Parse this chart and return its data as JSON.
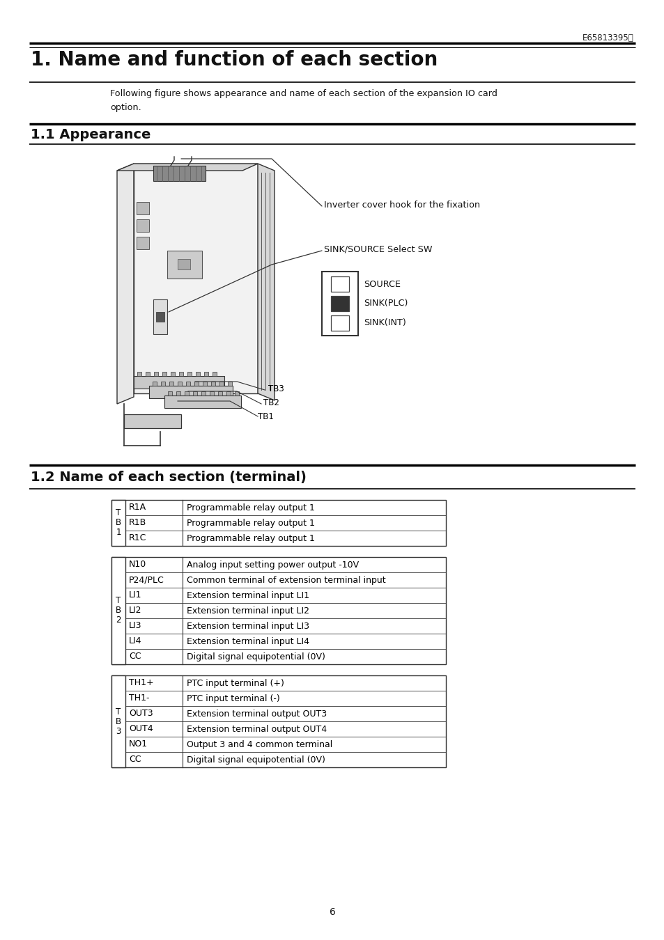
{
  "page_number": "6",
  "doc_id": "E65813395ⓔ",
  "title": "1. Name and function of each section",
  "intro_line1": "Following figure shows appearance and name of each section of the expansion IO card",
  "intro_line2": "option.",
  "section1": "1.1 Appearance",
  "section2": "1.2 Name of each section (terminal)",
  "label1": "Inverter cover hook for the fixation",
  "label2": "SINK/SOURCE Select SW",
  "switch_labels": [
    "SOURCE",
    "SINK(PLC)",
    "SINK(INT)"
  ],
  "tb_labels": [
    "TB3",
    "TB2",
    "TB1"
  ],
  "table1": {
    "group_label": "T\nB\n1",
    "rows": [
      [
        "R1A",
        "Programmable relay output 1"
      ],
      [
        "R1B",
        "Programmable relay output 1"
      ],
      [
        "R1C",
        "Programmable relay output 1"
      ]
    ]
  },
  "table2": {
    "group_label": "T\nB\n2",
    "rows": [
      [
        "N10",
        "Analog input setting power output -10V"
      ],
      [
        "P24/PLC",
        "Common terminal of extension terminal input"
      ],
      [
        "LI1",
        "Extension terminal input LI1"
      ],
      [
        "LI2",
        "Extension terminal input LI2"
      ],
      [
        "LI3",
        "Extension terminal input LI3"
      ],
      [
        "LI4",
        "Extension terminal input LI4"
      ],
      [
        "CC",
        "Digital signal equipotential (0V)"
      ]
    ]
  },
  "table3": {
    "group_label": "T\nB\n3",
    "rows": [
      [
        "TH1+",
        "PTC input terminal (+)"
      ],
      [
        "TH1-",
        "PTC input terminal (-)"
      ],
      [
        "OUT3",
        "Extension terminal output OUT3"
      ],
      [
        "OUT4",
        "Extension terminal output OUT4"
      ],
      [
        "NO1",
        "Output 3 and 4 common terminal"
      ],
      [
        "CC",
        "Digital signal equipotential (0V)"
      ]
    ]
  },
  "bg_color": "#ffffff",
  "text_color": "#000000"
}
